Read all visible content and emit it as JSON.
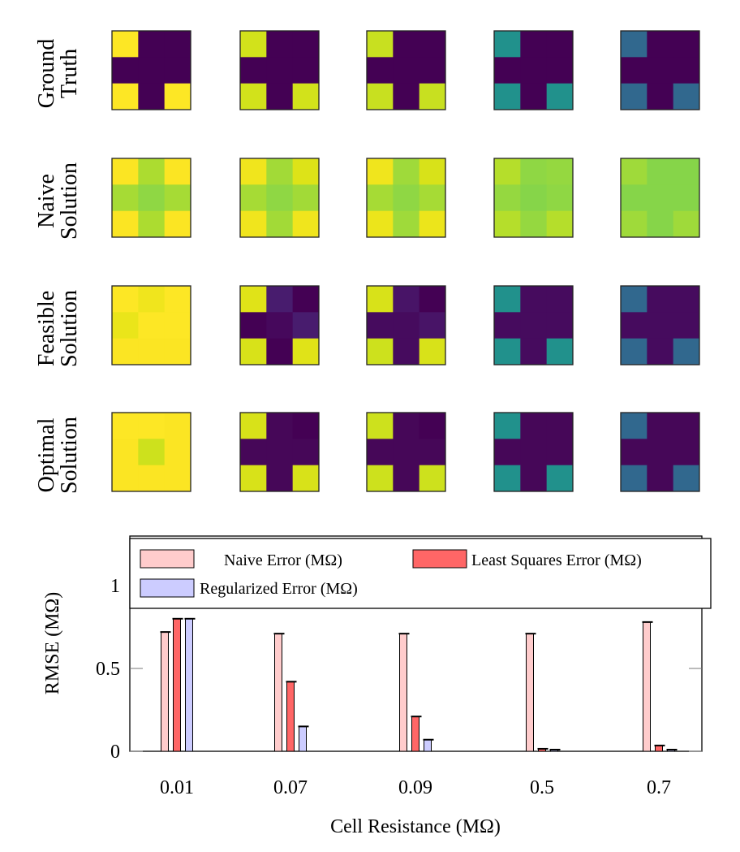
{
  "chart_data": [
    {
      "type": "heatmap",
      "row_labels": [
        [
          "Ground",
          "Truth"
        ],
        [
          "Naive",
          "Solution"
        ],
        [
          "Feasible",
          "Solution"
        ],
        [
          "Optimal",
          "Solution"
        ]
      ],
      "colormap": "viridis",
      "grids": [
        [
          [
            [
              "#fde725",
              "#440154",
              "#440154"
            ],
            [
              "#440154",
              "#440154",
              "#440154"
            ],
            [
              "#fde725",
              "#440154",
              "#fde725"
            ]
          ],
          [
            [
              "#d2e21b",
              "#440154",
              "#440154"
            ],
            [
              "#440154",
              "#440154",
              "#440154"
            ],
            [
              "#d2e21b",
              "#440154",
              "#d2e21b"
            ]
          ],
          [
            [
              "#c8e020",
              "#440154",
              "#440154"
            ],
            [
              "#440154",
              "#440154",
              "#440154"
            ],
            [
              "#c8e020",
              "#440154",
              "#c8e020"
            ]
          ],
          [
            [
              "#21918c",
              "#440154",
              "#440154"
            ],
            [
              "#440154",
              "#440154",
              "#440154"
            ],
            [
              "#21918c",
              "#440154",
              "#21918c"
            ]
          ],
          [
            [
              "#31688e",
              "#440154",
              "#440154"
            ],
            [
              "#440154",
              "#440154",
              "#440154"
            ],
            [
              "#31688e",
              "#440154",
              "#31688e"
            ]
          ]
        ],
        [
          [
            [
              "#fbe523",
              "#acdc30",
              "#fbe523"
            ],
            [
              "#a6db35",
              "#8fd744",
              "#a6db35"
            ],
            [
              "#fbe523",
              "#acdc30",
              "#fbe523"
            ]
          ],
          [
            [
              "#f0e51d",
              "#a2da37",
              "#dde318"
            ],
            [
              "#a6db35",
              "#8fd744",
              "#a2da37"
            ],
            [
              "#f0e51d",
              "#a2da37",
              "#f0e51d"
            ]
          ],
          [
            [
              "#f0e51d",
              "#9fda3a",
              "#d8e219"
            ],
            [
              "#a6db35",
              "#8fd744",
              "#a6db35"
            ],
            [
              "#ece51b",
              "#9fda3a",
              "#ece51b"
            ]
          ],
          [
            [
              "#b5de2b",
              "#8fd744",
              "#95d840"
            ],
            [
              "#95d840",
              "#86d549",
              "#8fd744"
            ],
            [
              "#b5de2b",
              "#95d840",
              "#b5de2b"
            ]
          ],
          [
            [
              "#9fda3a",
              "#86d549",
              "#86d549"
            ],
            [
              "#86d549",
              "#86d549",
              "#86d549"
            ],
            [
              "#9fda3a",
              "#86d549",
              "#9fda3a"
            ]
          ]
        ],
        [
          [
            [
              "#fde725",
              "#f0e51d",
              "#fde725"
            ],
            [
              "#eae51a",
              "#fde725",
              "#fde725"
            ],
            [
              "#fbe523",
              "#fbe523",
              "#fbe523"
            ]
          ],
          [
            [
              "#e0e318",
              "#481c6e",
              "#440154"
            ],
            [
              "#440154",
              "#46085c",
              "#481c6e"
            ],
            [
              "#d8e219",
              "#440154",
              "#e0e318"
            ]
          ],
          [
            [
              "#d8e219",
              "#481467",
              "#440154"
            ],
            [
              "#460b5e",
              "#460b5e",
              "#481467"
            ],
            [
              "#cde11d",
              "#460b5e",
              "#d8e219"
            ]
          ],
          [
            [
              "#21918c",
              "#460b5e",
              "#460b5e"
            ],
            [
              "#460b5e",
              "#460b5e",
              "#460b5e"
            ],
            [
              "#21918c",
              "#460b5e",
              "#21918c"
            ]
          ],
          [
            [
              "#31688e",
              "#460b5e",
              "#460b5e"
            ],
            [
              "#460b5e",
              "#460b5e",
              "#460b5e"
            ],
            [
              "#31688e",
              "#460b5e",
              "#31688e"
            ]
          ]
        ],
        [
          [
            [
              "#fde725",
              "#fde725",
              "#fbe523"
            ],
            [
              "#fbe523",
              "#cde11d",
              "#fbe523"
            ],
            [
              "#fbe523",
              "#fbe523",
              "#fbe523"
            ]
          ],
          [
            [
              "#d8e219",
              "#460758",
              "#440154"
            ],
            [
              "#460758",
              "#460758",
              "#460758"
            ],
            [
              "#d8e219",
              "#460758",
              "#d8e219"
            ]
          ],
          [
            [
              "#cde11d",
              "#460758",
              "#440154"
            ],
            [
              "#460758",
              "#460758",
              "#460758"
            ],
            [
              "#cde11d",
              "#460758",
              "#cde11d"
            ]
          ],
          [
            [
              "#21918c",
              "#460758",
              "#460758"
            ],
            [
              "#460758",
              "#460758",
              "#460758"
            ],
            [
              "#21918c",
              "#460758",
              "#21918c"
            ]
          ],
          [
            [
              "#31688e",
              "#460758",
              "#460758"
            ],
            [
              "#460758",
              "#460758",
              "#460758"
            ],
            [
              "#31688e",
              "#460758",
              "#31688e"
            ]
          ]
        ]
      ]
    },
    {
      "type": "bar",
      "xlabel": "Cell Resistance (MΩ)",
      "ylabel": "RMSE (MΩ)",
      "categories": [
        "0.01",
        "0.07",
        "0.09",
        "0.5",
        "0.7"
      ],
      "ylim": [
        0,
        1.3
      ],
      "yticks": [
        0,
        0.5,
        1
      ],
      "ytick_labels": [
        "0",
        "0.5",
        "1"
      ],
      "grid": false,
      "legend_placement": "top",
      "series": [
        {
          "name": "Naive Error (MΩ)",
          "color": "#ffcccc",
          "values": [
            0.72,
            0.71,
            0.71,
            0.71,
            0.78
          ]
        },
        {
          "name": "Least Squares Error (MΩ)",
          "color": "#ff6666",
          "values": [
            0.8,
            0.42,
            0.21,
            0.015,
            0.035
          ]
        },
        {
          "name": "Regularized Error (MΩ)",
          "color": "#ccccff",
          "values": [
            0.8,
            0.15,
            0.07,
            0.01,
            0.01
          ]
        }
      ]
    }
  ]
}
